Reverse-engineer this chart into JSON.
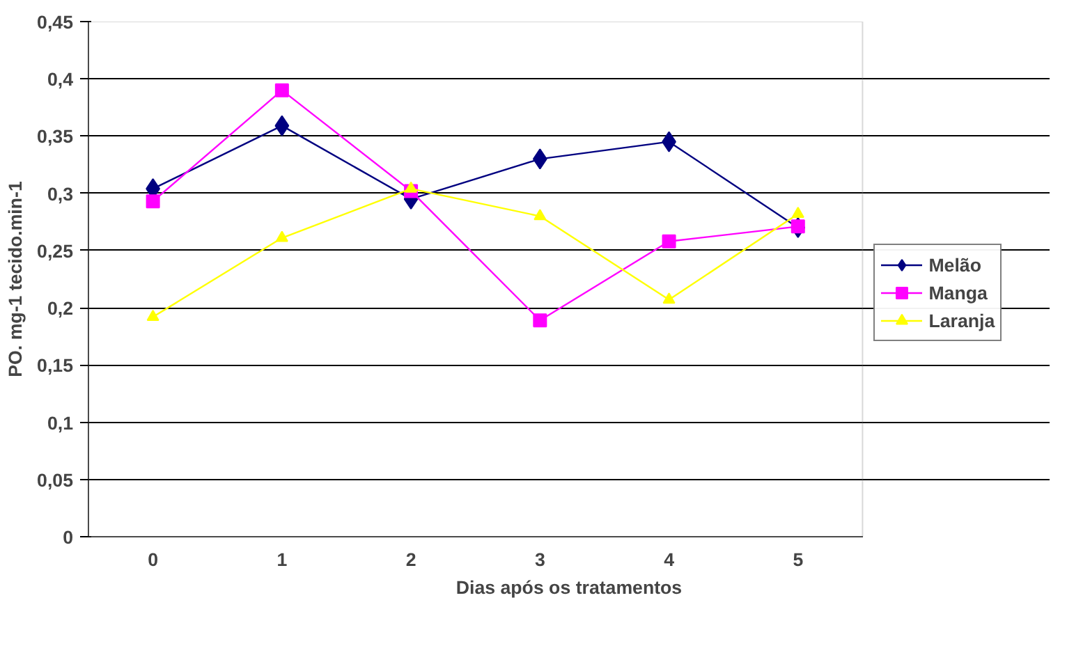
{
  "chart_data": {
    "type": "line",
    "xlabel": "Dias após os tratamentos",
    "ylabel": "PO. mg-1 tecido.min-1",
    "categories": [
      "0",
      "1",
      "2",
      "3",
      "4",
      "5"
    ],
    "series": [
      {
        "name": "Melão",
        "color": "#000080",
        "marker": "diamond",
        "values": [
          0.304,
          0.359,
          0.295,
          0.33,
          0.345,
          0.27
        ]
      },
      {
        "name": "Manga",
        "color": "#ff00ff",
        "marker": "square",
        "values": [
          0.293,
          0.39,
          0.302,
          0.189,
          0.258,
          0.271
        ]
      },
      {
        "name": "Laranja",
        "color": "#ffff00",
        "marker": "triangle",
        "values": [
          0.192,
          0.261,
          0.304,
          0.28,
          0.207,
          0.282
        ]
      }
    ],
    "ylim": [
      0,
      0.45
    ],
    "yticks": [
      {
        "value": 0,
        "label": "0"
      },
      {
        "value": 0.05,
        "label": "0,05"
      },
      {
        "value": 0.1,
        "label": "0,1"
      },
      {
        "value": 0.15,
        "label": "0,15"
      },
      {
        "value": 0.2,
        "label": "0,2"
      },
      {
        "value": 0.25,
        "label": "0,25"
      },
      {
        "value": 0.3,
        "label": "0,3"
      },
      {
        "value": 0.35,
        "label": "0,35"
      },
      {
        "value": 0.4,
        "label": "0,4"
      },
      {
        "value": 0.45,
        "label": "0,45"
      }
    ],
    "grid": "y",
    "legend": "right",
    "line_style": "solid"
  }
}
